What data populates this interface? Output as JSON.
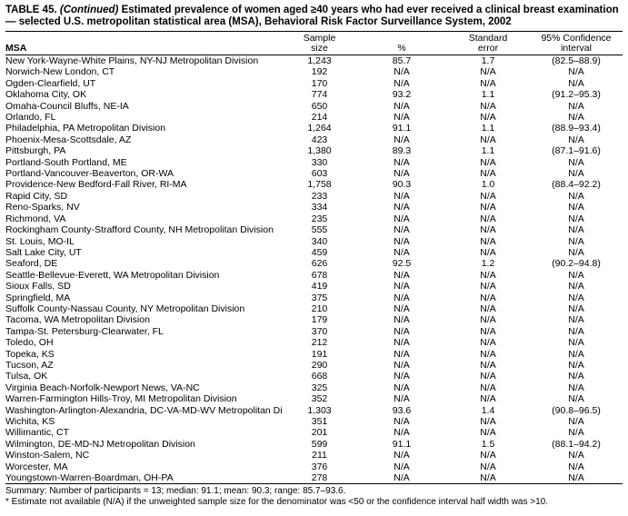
{
  "title": {
    "prefix": "TABLE 45. ",
    "continued": "(Continued)",
    "rest": " Estimated prevalence of women aged ≥40 years who had ever received a clinical breast examination — selected U.S. metropolitan statistical area (MSA), Behavioral Risk Factor Surveillance System, 2002"
  },
  "columns": {
    "msa": "MSA",
    "sample_size_line1": "Sample",
    "sample_size_line2": "size",
    "percent": "%",
    "standard_error_line1": "Standard",
    "standard_error_line2": "error",
    "ci_line1": "95% Confidence",
    "ci_line2": "interval"
  },
  "rows": [
    {
      "msa": "New York-Wayne-White Plains, NY-NJ Metropolitan Division",
      "n": "1,243",
      "pct": "85.7",
      "se": "1.7",
      "ci": "(82.5–88.9)"
    },
    {
      "msa": "Norwich-New London, CT",
      "n": "192",
      "pct": "N/A",
      "se": "N/A",
      "ci": "N/A"
    },
    {
      "msa": "Ogden-Clearfield, UT",
      "n": "170",
      "pct": "N/A",
      "se": "N/A",
      "ci": "N/A"
    },
    {
      "msa": "Oklahoma City, OK",
      "n": "774",
      "pct": "93.2",
      "se": "1.1",
      "ci": "(91.2–95.3)"
    },
    {
      "msa": "Omaha-Council Bluffs, NE-IA",
      "n": "650",
      "pct": "N/A",
      "se": "N/A",
      "ci": "N/A"
    },
    {
      "msa": "Orlando, FL",
      "n": "214",
      "pct": "N/A",
      "se": "N/A",
      "ci": "N/A"
    },
    {
      "msa": "Philadelphia, PA Metropolitan Division",
      "n": "1,264",
      "pct": "91.1",
      "se": "1.1",
      "ci": "(88.9–93.4)"
    },
    {
      "msa": "Phoenix-Mesa-Scottsdale, AZ",
      "n": "423",
      "pct": "N/A",
      "se": "N/A",
      "ci": "N/A"
    },
    {
      "msa": "Pittsburgh, PA",
      "n": "1,380",
      "pct": "89.3",
      "se": "1.1",
      "ci": "(87.1–91.6)"
    },
    {
      "msa": "Portland-South Portland, ME",
      "n": "330",
      "pct": "N/A",
      "se": "N/A",
      "ci": "N/A"
    },
    {
      "msa": "Portland-Vancouver-Beaverton, OR-WA",
      "n": "603",
      "pct": "N/A",
      "se": "N/A",
      "ci": "N/A"
    },
    {
      "msa": "Providence-New Bedford-Fall River, RI-MA",
      "n": "1,758",
      "pct": "90.3",
      "se": "1.0",
      "ci": "(88.4–92.2)"
    },
    {
      "msa": "Rapid City, SD",
      "n": "233",
      "pct": "N/A",
      "se": "N/A",
      "ci": "N/A"
    },
    {
      "msa": "Reno-Sparks, NV",
      "n": "334",
      "pct": "N/A",
      "se": "N/A",
      "ci": "N/A"
    },
    {
      "msa": "Richmond, VA",
      "n": "235",
      "pct": "N/A",
      "se": "N/A",
      "ci": "N/A"
    },
    {
      "msa": "Rockingham County-Strafford County, NH Metropolitan Division",
      "n": "555",
      "pct": "N/A",
      "se": "N/A",
      "ci": "N/A"
    },
    {
      "msa": "St. Louis, MO-IL",
      "n": "340",
      "pct": "N/A",
      "se": "N/A",
      "ci": "N/A"
    },
    {
      "msa": "Salt Lake City, UT",
      "n": "459",
      "pct": "N/A",
      "se": "N/A",
      "ci": "N/A"
    },
    {
      "msa": "Seaford, DE",
      "n": "626",
      "pct": "92.5",
      "se": "1.2",
      "ci": "(90.2–94.8)"
    },
    {
      "msa": "Seattle-Bellevue-Everett, WA Metropolitan Division",
      "n": "678",
      "pct": "N/A",
      "se": "N/A",
      "ci": "N/A"
    },
    {
      "msa": "Sioux Falls, SD",
      "n": "419",
      "pct": "N/A",
      "se": "N/A",
      "ci": "N/A"
    },
    {
      "msa": "Springfield, MA",
      "n": "375",
      "pct": "N/A",
      "se": "N/A",
      "ci": "N/A"
    },
    {
      "msa": "Suffolk County-Nassau County, NY Metropolitan Division",
      "n": "210",
      "pct": "N/A",
      "se": "N/A",
      "ci": "N/A"
    },
    {
      "msa": "Tacoma, WA Metropolitan Division",
      "n": "179",
      "pct": "N/A",
      "se": "N/A",
      "ci": "N/A"
    },
    {
      "msa": "Tampa-St. Petersburg-Clearwater, FL",
      "n": "370",
      "pct": "N/A",
      "se": "N/A",
      "ci": "N/A"
    },
    {
      "msa": "Toledo, OH",
      "n": "212",
      "pct": "N/A",
      "se": "N/A",
      "ci": "N/A"
    },
    {
      "msa": "Topeka, KS",
      "n": "191",
      "pct": "N/A",
      "se": "N/A",
      "ci": "N/A"
    },
    {
      "msa": "Tucson, AZ",
      "n": "290",
      "pct": "N/A",
      "se": "N/A",
      "ci": "N/A"
    },
    {
      "msa": "Tulsa, OK",
      "n": "668",
      "pct": "N/A",
      "se": "N/A",
      "ci": "N/A"
    },
    {
      "msa": "Virginia Beach-Norfolk-Newport News, VA-NC",
      "n": "325",
      "pct": "N/A",
      "se": "N/A",
      "ci": "N/A"
    },
    {
      "msa": "Warren-Farmington Hills-Troy, MI Metropolitan Division",
      "n": "352",
      "pct": "N/A",
      "se": "N/A",
      "ci": "N/A"
    },
    {
      "msa": "Washington-Arlington-Alexandria, DC-VA-MD-WV Metropolitan Division",
      "n": "1,303",
      "pct": "93.6",
      "se": "1.4",
      "ci": "(90.8–96.5)"
    },
    {
      "msa": "Wichita, KS",
      "n": "351",
      "pct": "N/A",
      "se": "N/A",
      "ci": "N/A"
    },
    {
      "msa": "Willimantic, CT",
      "n": "201",
      "pct": "N/A",
      "se": "N/A",
      "ci": "N/A"
    },
    {
      "msa": "Wilmington, DE-MD-NJ Metropolitan Division",
      "n": "599",
      "pct": "91.1",
      "se": "1.5",
      "ci": "(88.1–94.2)"
    },
    {
      "msa": "Winston-Salem, NC",
      "n": "211",
      "pct": "N/A",
      "se": "N/A",
      "ci": "N/A"
    },
    {
      "msa": "Worcester, MA",
      "n": "376",
      "pct": "N/A",
      "se": "N/A",
      "ci": "N/A"
    },
    {
      "msa": "Youngstown-Warren-Boardman, OH-PA",
      "n": "278",
      "pct": "N/A",
      "se": "N/A",
      "ci": "N/A"
    }
  ],
  "footer": {
    "summary": "Summary: Number of participants = 13; median: 91.1; mean: 90.3; range: 85.7–93.6.",
    "footnote": "* Estimate not available (N/A) if the unweighted sample size for the denominator was <50 or the confidence interval half width was >10."
  }
}
